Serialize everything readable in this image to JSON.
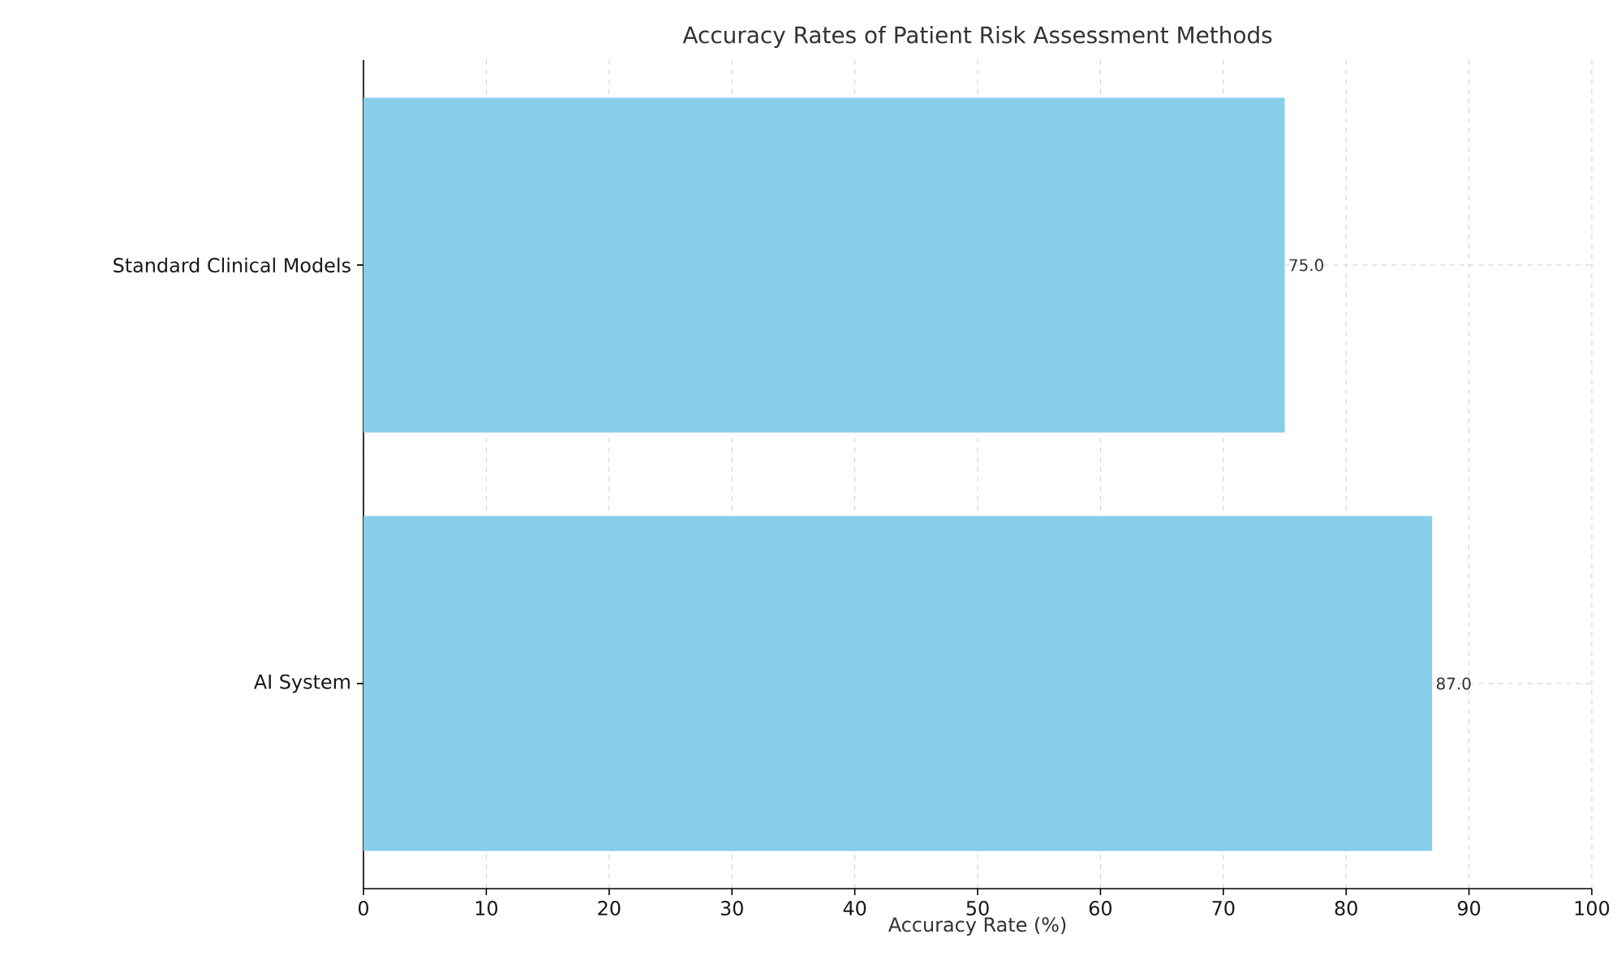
{
  "chart_data": {
    "type": "bar",
    "orientation": "horizontal",
    "title": "Accuracy Rates of Patient Risk Assessment Methods",
    "xlabel": "Accuracy Rate (%)",
    "categories": [
      "Standard Clinical Models",
      "AI System"
    ],
    "values": [
      75,
      87
    ],
    "value_labels": [
      "75.0",
      "87.0"
    ],
    "color": "#87ceeb",
    "xlim": [
      0,
      100
    ],
    "xticks": [
      0,
      10,
      20,
      30,
      40,
      50,
      60,
      70,
      80,
      90,
      100
    ],
    "grid": true
  }
}
